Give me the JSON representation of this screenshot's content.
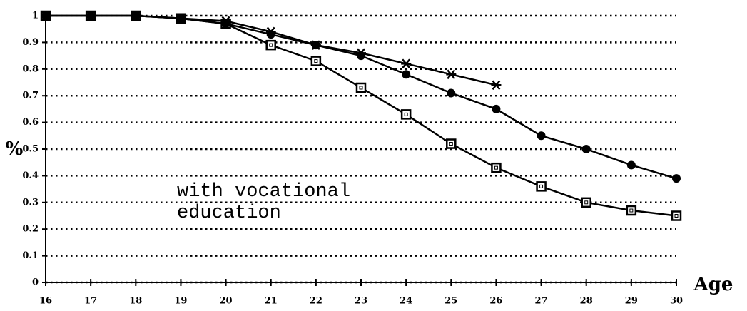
{
  "chart_data": {
    "type": "line",
    "x": [
      16,
      17,
      18,
      19,
      20,
      21,
      22,
      23,
      24,
      25,
      26,
      27,
      28,
      29,
      30
    ],
    "series": [
      {
        "color": "#000000",
        "marker": "square",
        "values": [
          1,
          1,
          1,
          0.99,
          0.97,
          0.89,
          0.83,
          0.73,
          0.63,
          0.52,
          0.43,
          0.36,
          0.3,
          0.27,
          0.25
        ]
      },
      {
        "color": "#000000",
        "marker": "circle",
        "values": [
          1,
          1,
          1,
          0.99,
          0.97,
          0.93,
          0.89,
          0.85,
          0.78,
          0.71,
          0.65,
          0.55,
          0.5,
          0.44,
          0.39
        ]
      },
      {
        "color": "#000000",
        "marker": "asterisk",
        "values": [
          1,
          1,
          1,
          0.99,
          0.98,
          0.94,
          0.89,
          0.86,
          0.82,
          0.78,
          0.74,
          null,
          null,
          null,
          null
        ]
      }
    ],
    "xlim": [
      16,
      30
    ],
    "xticks": [
      16,
      17,
      18,
      19,
      20,
      21,
      22,
      23,
      24,
      25,
      26,
      27,
      28,
      29,
      30
    ],
    "ylim": [
      0,
      1
    ],
    "yticks": [
      0,
      0.1,
      0.2,
      0.3,
      0.4,
      0.5,
      0.6,
      0.7,
      0.8,
      0.9,
      1
    ],
    "ylabel": "%",
    "xlabel": "Age",
    "annotation": [
      "with vocational",
      "education"
    ],
    "grid": true
  }
}
